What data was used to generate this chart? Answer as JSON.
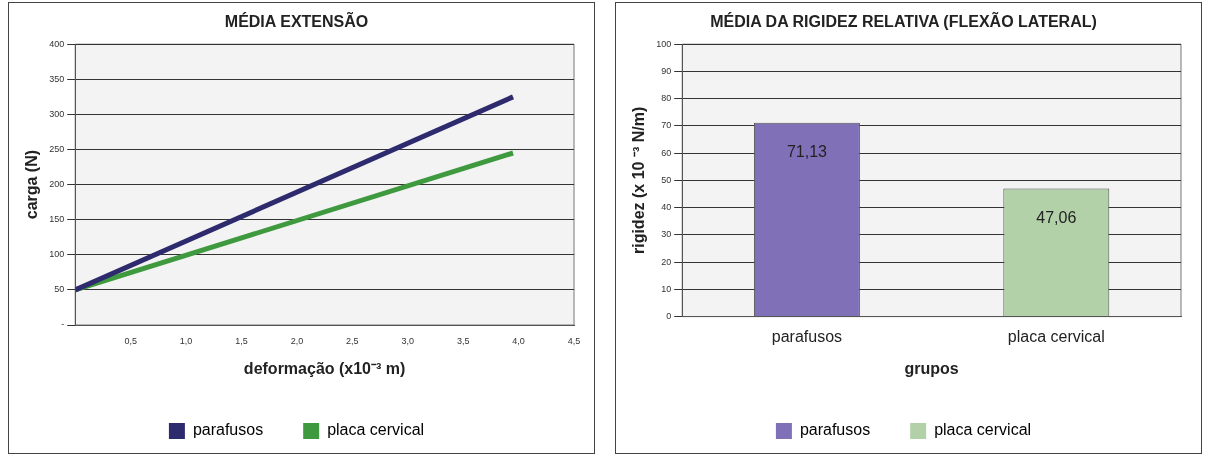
{
  "chart_data": [
    {
      "type": "line",
      "title": "MÉDIA EXTENSÃO",
      "xlabel": "deformação (x10⁻³ m)",
      "ylabel": "carga (N)",
      "series": [
        {
          "name": "parafusos",
          "color": "#2e2a6e",
          "values": [
            50,
            325
          ]
        },
        {
          "name": "placa cervical",
          "color": "#3f9a3f",
          "values": [
            50,
            245
          ]
        }
      ],
      "x": [
        0,
        3.95
      ],
      "xlim": [
        0,
        4.5
      ],
      "xticks": [
        {
          "value": 0,
          "label": null
        },
        {
          "value": 0.5,
          "label": "0,5"
        },
        {
          "value": 1,
          "label": "1,0"
        },
        {
          "value": 1.5,
          "label": "1,5"
        },
        {
          "value": 2,
          "label": "2,0"
        },
        {
          "value": 2.5,
          "label": "2,5"
        },
        {
          "value": 3,
          "label": "3,0"
        },
        {
          "value": 3.5,
          "label": "3,5"
        },
        {
          "value": 4,
          "label": "4,0"
        },
        {
          "value": 4.5,
          "label": "4,5"
        }
      ],
      "ylim": [
        0,
        400
      ],
      "yticks": [
        {
          "value": 0,
          "label": "-"
        },
        50,
        100,
        150,
        200,
        250,
        300,
        350,
        400
      ],
      "grid": "y",
      "legend": "bottom",
      "marker": "none",
      "line_style": "solid"
    },
    {
      "type": "bar",
      "title": "MÉDIA DA RIGIDEZ RELATIVA (FLEXÃO LATERAL)",
      "xlabel": "grupos",
      "ylabel": "rigidez (x 10 ⁻³ N/m)",
      "categories": [
        "parafusos",
        "placa cervical"
      ],
      "series": [
        {
          "name": "parafusos",
          "color": "#8070b8",
          "values": [
            71.13,
            null
          ],
          "value_labels": [
            "71,13",
            null
          ]
        },
        {
          "name": "placa cervical",
          "color": "#b3d1a8",
          "values": [
            null,
            47.06
          ],
          "value_labels": [
            null,
            "47,06"
          ]
        }
      ],
      "ylim": [
        0,
        100
      ],
      "yticks": [
        0,
        10,
        20,
        30,
        40,
        50,
        60,
        70,
        80,
        90,
        100
      ],
      "grid": "y",
      "legend": "bottom"
    }
  ]
}
